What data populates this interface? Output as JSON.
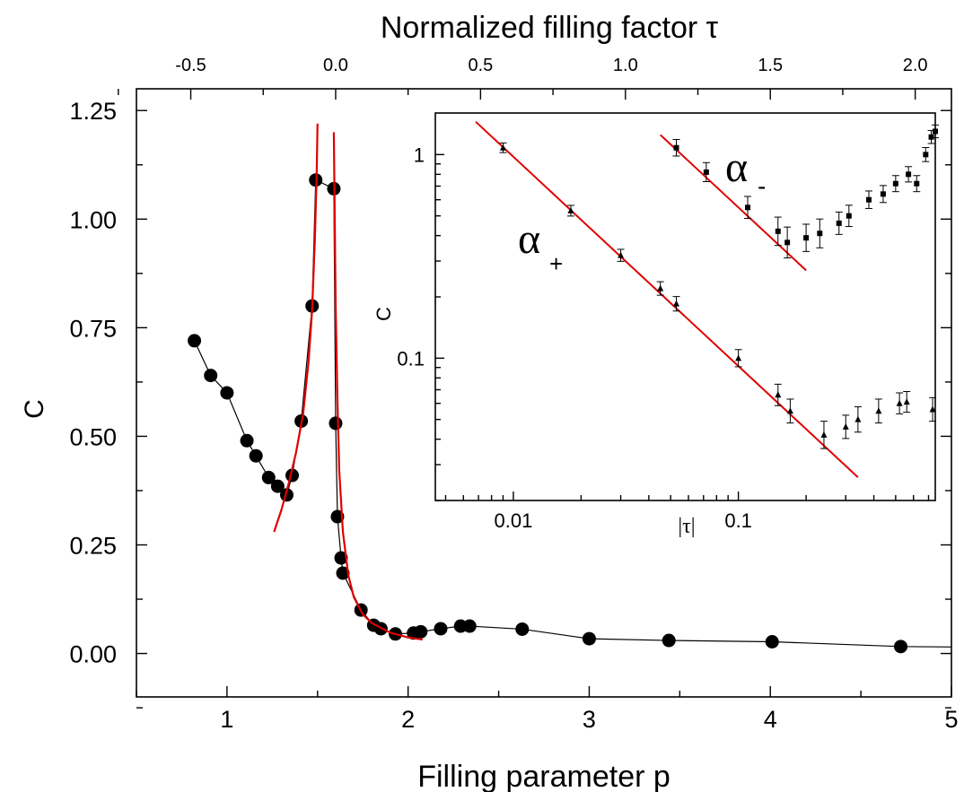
{
  "chart_data": [
    {
      "type": "scatter",
      "xlabel": "Filling parameter p",
      "ylabel": "C",
      "top_xlabel": "Normalized filling factor τ",
      "xlim": [
        0.5,
        5.0
      ],
      "ylim": [
        -0.1,
        1.3
      ],
      "x_ticks": [
        1,
        2,
        3,
        4,
        5
      ],
      "x_tick_labels": [
        "1",
        "2",
        "3",
        "4",
        "5"
      ],
      "y_ticks": [
        0.0,
        0.25,
        0.5,
        0.75,
        1.0,
        1.25
      ],
      "y_tick_labels": [
        "0.00",
        "0.25",
        "0.50",
        "0.75",
        "1.00",
        "1.25"
      ],
      "top_ticks": [
        -0.5,
        0.0,
        0.5,
        1.0,
        1.5,
        2.0
      ],
      "top_tick_labels": [
        "-0.5",
        "0.0",
        "0.5",
        "1.0",
        "1.5",
        "2.0"
      ],
      "top_tick_p": [
        0.8,
        1.6,
        2.4,
        3.2,
        4.0,
        4.8
      ],
      "series": [
        {
          "marker": "circle",
          "color": "#000000",
          "connected": true,
          "x": [
            0.82,
            0.91,
            1.0,
            1.11,
            1.16,
            1.23,
            1.28,
            1.33,
            1.36,
            1.41,
            1.47,
            1.49,
            1.59,
            1.6,
            1.61,
            1.63,
            1.64,
            1.74,
            1.81,
            1.85,
            1.93,
            2.03,
            2.07,
            2.18,
            2.29,
            2.34,
            2.63,
            3.0,
            3.44,
            4.01,
            4.72,
            5.0
          ],
          "y": [
            0.72,
            0.64,
            0.6,
            0.49,
            0.455,
            0.405,
            0.385,
            0.365,
            0.41,
            0.535,
            0.8,
            1.09,
            1.07,
            0.53,
            0.315,
            0.22,
            0.185,
            0.1,
            0.065,
            0.057,
            0.045,
            0.047,
            0.05,
            0.057,
            0.063,
            0.063,
            0.056,
            0.034,
            0.03,
            0.027,
            0.016,
            0.015
          ],
          "markers_drawn": 31
        },
        {
          "name": "",
          "kind": "fit",
          "color": "#e00000",
          "x": [
            1.26,
            1.3,
            1.34,
            1.38,
            1.42,
            1.45,
            1.47,
            1.485,
            1.495,
            1.5
          ],
          "y": [
            0.28,
            0.33,
            0.39,
            0.46,
            0.55,
            0.67,
            0.79,
            0.95,
            1.1,
            1.22
          ]
        },
        {
          "name": "",
          "kind": "fit",
          "color": "#e00000",
          "x": [
            1.59,
            1.595,
            1.6,
            1.61,
            1.62,
            1.64,
            1.67,
            1.7,
            1.75,
            1.8,
            1.9,
            2.0,
            2.08
          ],
          "y": [
            1.2,
            1.0,
            0.8,
            0.58,
            0.42,
            0.28,
            0.18,
            0.13,
            0.09,
            0.07,
            0.048,
            0.037,
            0.032
          ]
        }
      ]
    },
    {
      "type": "scatter",
      "xlabel": "|τ|",
      "ylabel": "C",
      "x_scale": "log",
      "y_scale": "log",
      "xlim": [
        0.0045,
        0.75
      ],
      "ylim": [
        0.02,
        1.6
      ],
      "x_ticks": [
        0.01,
        0.1
      ],
      "x_tick_labels": [
        "0.01",
        "0.1"
      ],
      "y_ticks": [
        0.1,
        1
      ],
      "y_tick_labels": [
        "0.1",
        "1"
      ],
      "annotations": [
        {
          "symbol": "α",
          "subscript": "+"
        },
        {
          "symbol": "α",
          "subscript": "-"
        }
      ],
      "series": [
        {
          "name": "α+",
          "marker": "triangle",
          "color": "#000000",
          "x": [
            0.009,
            0.018,
            0.03,
            0.045,
            0.053,
            0.1,
            0.15,
            0.17,
            0.24,
            0.3,
            0.34,
            0.42,
            0.52,
            0.56,
            0.73
          ],
          "y": [
            1.08,
            0.53,
            0.32,
            0.22,
            0.185,
            0.1,
            0.066,
            0.055,
            0.042,
            0.046,
            0.05,
            0.055,
            0.06,
            0.061,
            0.056
          ],
          "err": [
            0.01,
            0.01,
            0.01,
            0.01,
            0.01,
            0.008,
            0.008,
            0.008,
            0.009,
            0.007,
            0.008,
            0.008,
            0.007,
            0.007,
            0.008
          ]
        },
        {
          "name": "α-",
          "marker": "square",
          "color": "#000000",
          "x": [
            0.053,
            0.072,
            0.11,
            0.15,
            0.165,
            0.2,
            0.23,
            0.28,
            0.31,
            0.38,
            0.44,
            0.5,
            0.57,
            0.62,
            0.68,
            0.72,
            0.75
          ],
          "y": [
            1.08,
            0.82,
            0.55,
            0.42,
            0.37,
            0.39,
            0.41,
            0.46,
            0.5,
            0.6,
            0.64,
            0.72,
            0.8,
            0.72,
            1.0,
            1.22,
            1.3
          ],
          "err": [
            0.08,
            0.08,
            0.07,
            0.08,
            0.08,
            0.07,
            0.08,
            0.06,
            0.06,
            0.05,
            0.05,
            0.05,
            0.05,
            0.05,
            0.05,
            0.05,
            0.05
          ]
        },
        {
          "name": "",
          "kind": "fit",
          "color": "#e00000",
          "x": [
            0.0068,
            0.34
          ],
          "y": [
            1.45,
            0.026
          ]
        },
        {
          "name": "",
          "kind": "fit",
          "color": "#e00000",
          "x": [
            0.045,
            0.2
          ],
          "y": [
            1.25,
            0.27
          ]
        }
      ]
    }
  ]
}
